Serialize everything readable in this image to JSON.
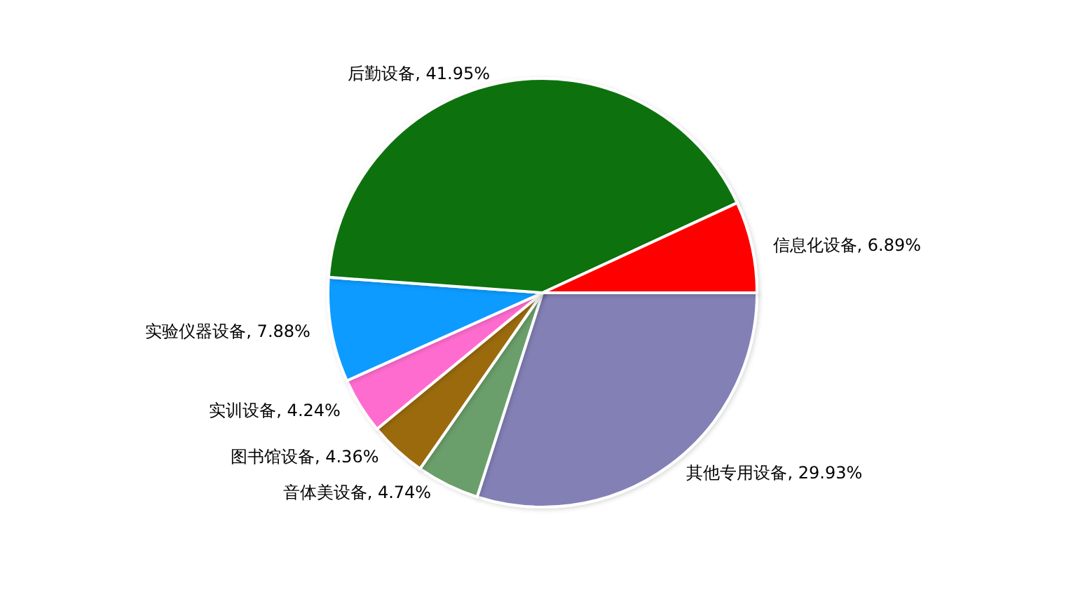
{
  "chart_data": {
    "type": "pie",
    "categories": [
      "其他专用设备",
      "音体美设备",
      "图书馆设备",
      "实训设备",
      "实验仪器设备",
      "后勤设备",
      "信息化设备"
    ],
    "values": [
      29.93,
      4.74,
      4.36,
      4.24,
      7.88,
      41.95,
      6.89
    ],
    "value_labels": [
      "29.93%",
      "4.74%",
      "4.36%",
      "4.24%",
      "7.88%",
      "41.95%",
      "6.89%"
    ],
    "colors": [
      "#8280b5",
      "#6a9e6b",
      "#9a6a10",
      "#ff6ccf",
      "#0d9bff",
      "#0c720c",
      "#ff0000"
    ]
  }
}
